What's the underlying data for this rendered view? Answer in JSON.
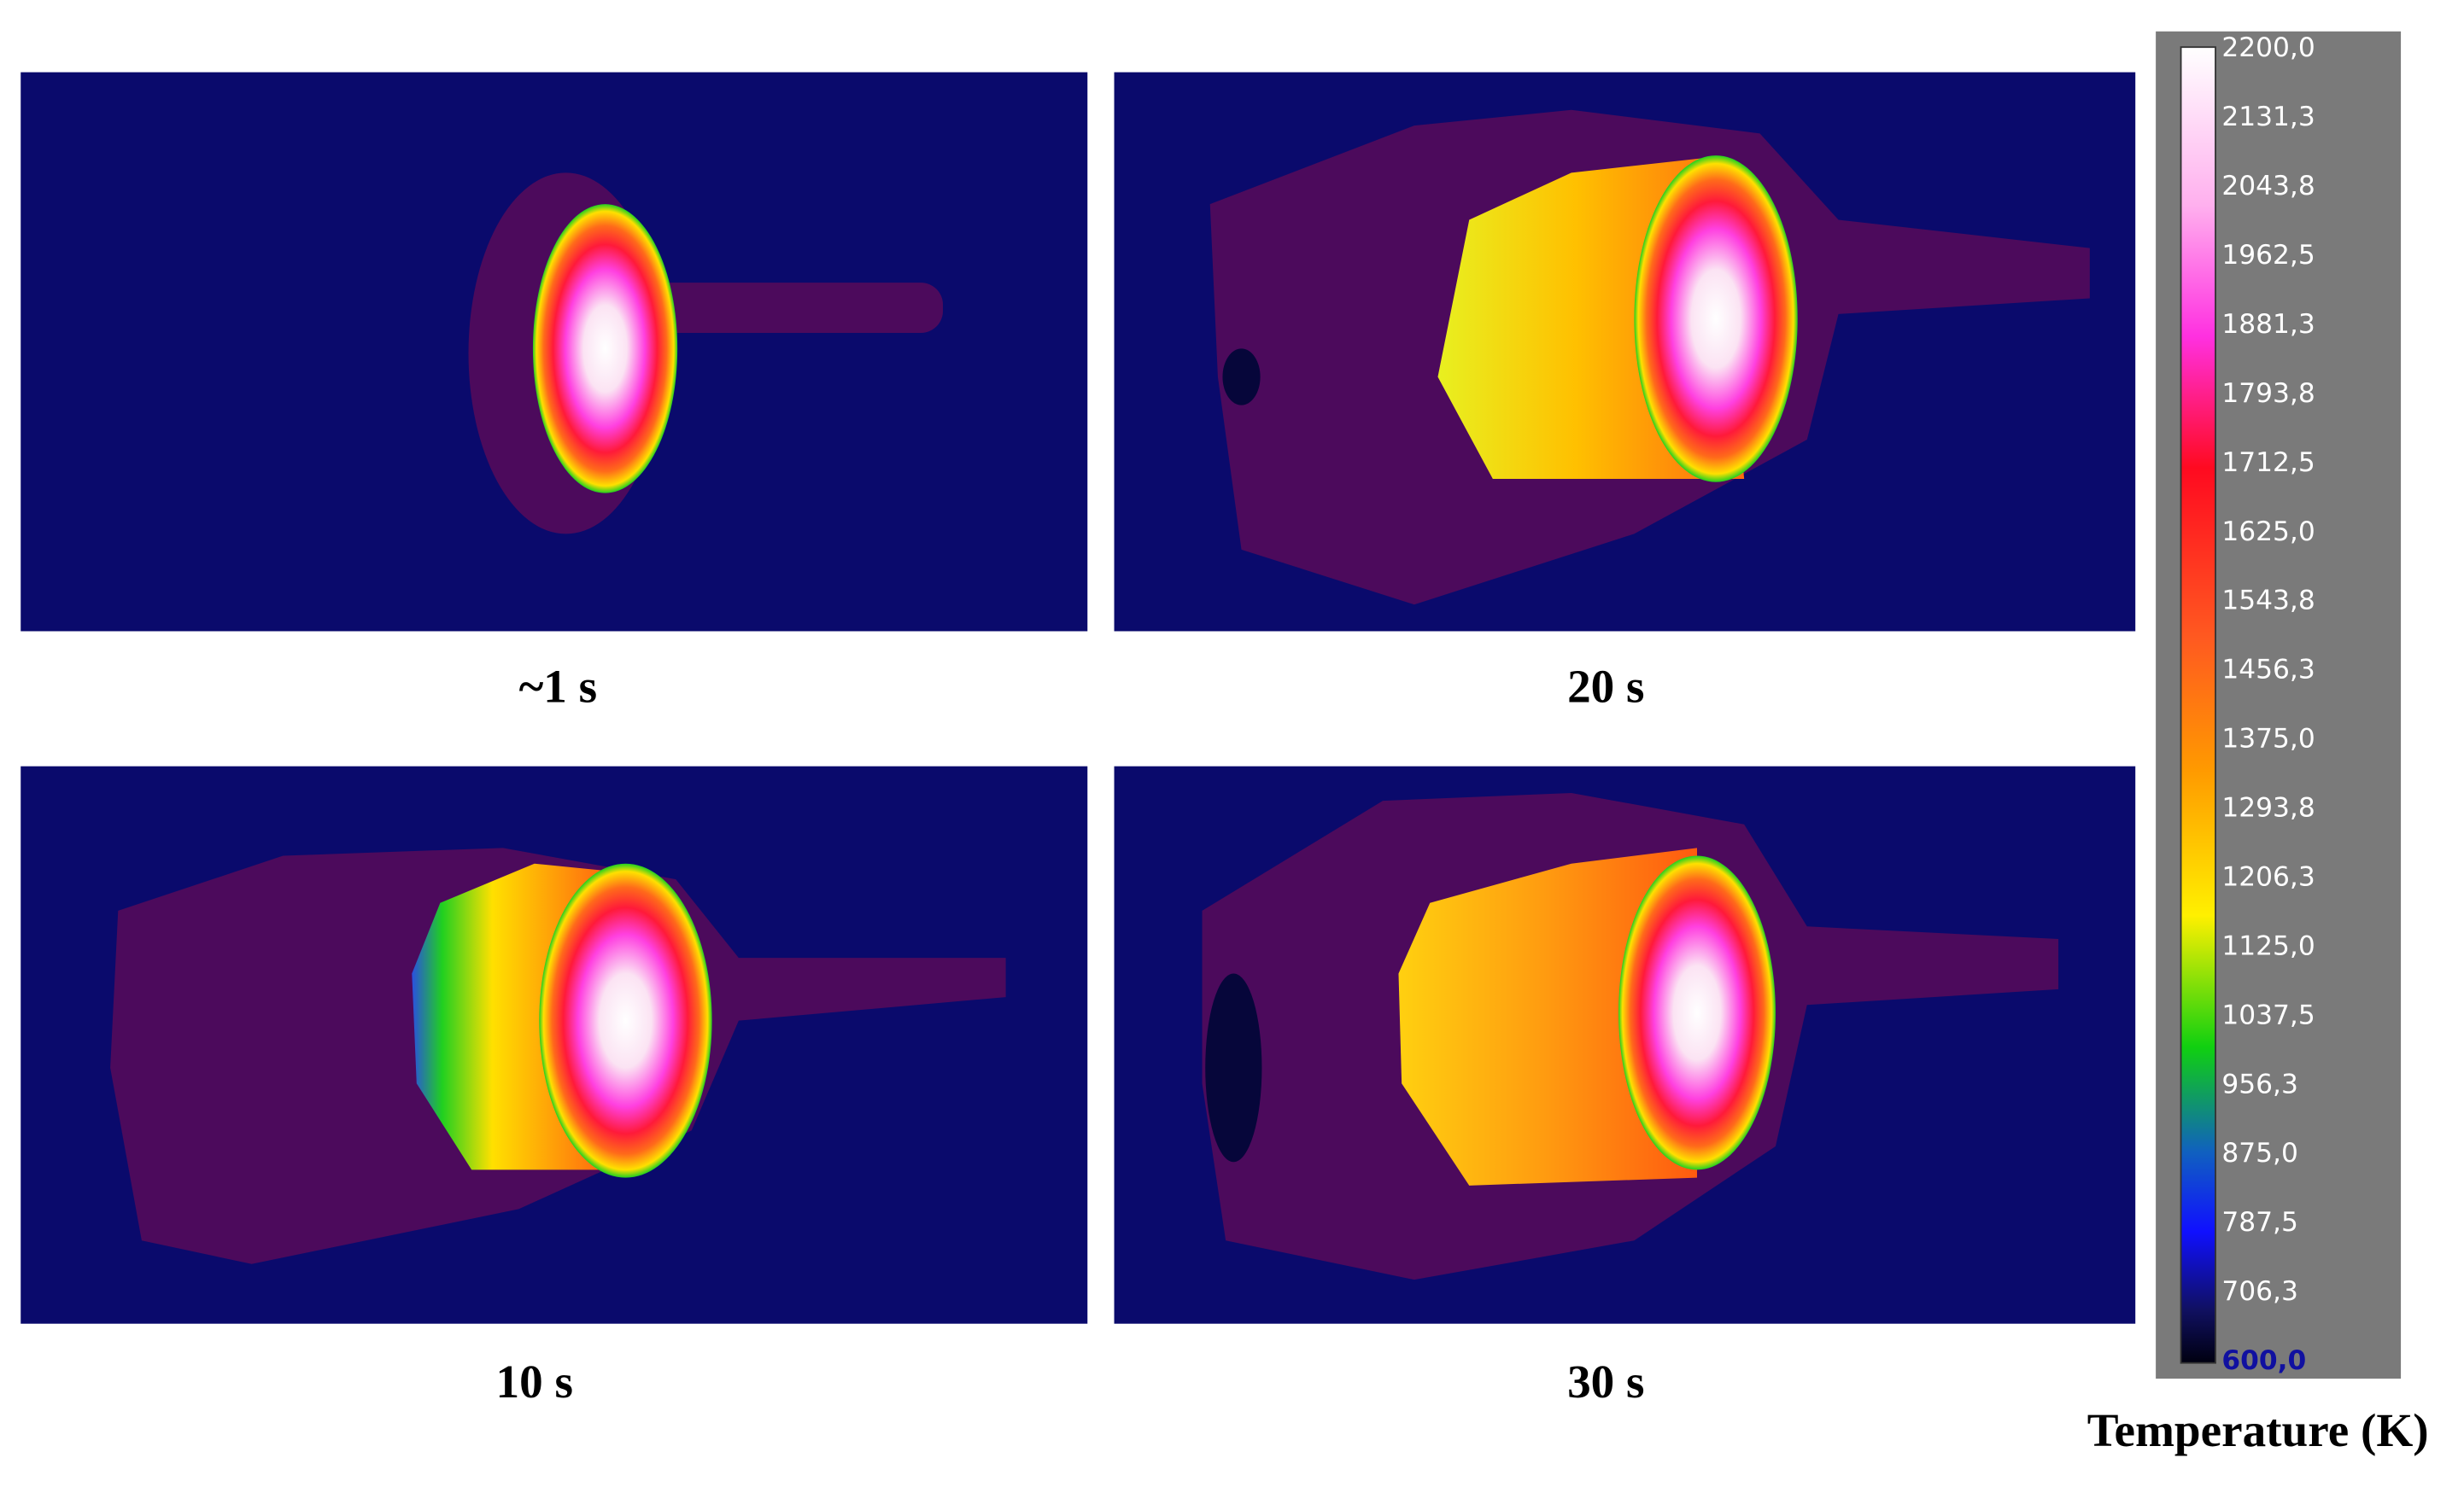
{
  "panels": [
    {
      "label": "~1 s"
    },
    {
      "label": "20 s"
    },
    {
      "label": "10 s"
    },
    {
      "label": "30 s"
    }
  ],
  "colorbar": {
    "title": "Temperature (K)",
    "ticks": [
      "2200,0",
      "2131,3",
      "2043,8",
      "1962,5",
      "1881,3",
      "1793,8",
      "1712,5",
      "1625,0",
      "1543,8",
      "1456,3",
      "1375,0",
      "1293,8",
      "1206,3",
      "1125,0",
      "1037,5",
      "956,3",
      "875,0",
      "787,5",
      "706,3",
      "600,0"
    ]
  }
}
